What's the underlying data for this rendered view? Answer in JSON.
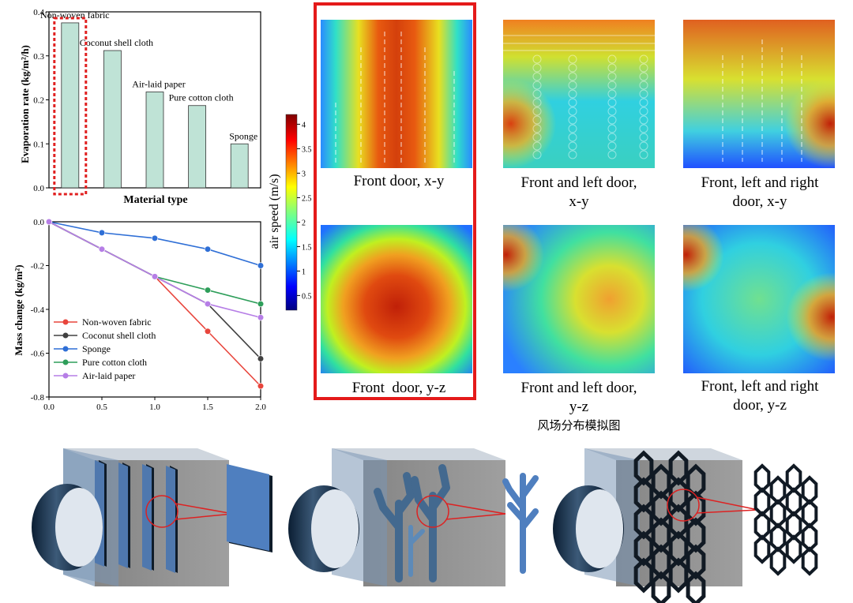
{
  "chart_data": [
    {
      "type": "bar",
      "categories": [
        "Non-woven fabric",
        "Coconut shell cloth",
        "Air-laid paper",
        "Pure cotton cloth",
        "Sponge"
      ],
      "values": [
        0.375,
        0.312,
        0.218,
        0.187,
        0.1
      ],
      "xlabel": "Material type",
      "ylabel": "Evaporation rate (kg/m²/h)",
      "ylim": [
        0,
        0.4
      ],
      "yticks": [
        "0.0",
        "0.1",
        "0.2",
        "0.3",
        "0.4"
      ],
      "highlight": "Non-woven fabric",
      "bar_color": "#bfe3d6",
      "highlight_color": "#e02020"
    },
    {
      "type": "line",
      "x": [
        0,
        0.5,
        1.0,
        1.5,
        2.0
      ],
      "series": [
        {
          "name": "Non-woven fabric",
          "color": "#e8453c",
          "values": [
            0,
            null,
            -0.25,
            -0.5,
            -0.75
          ]
        },
        {
          "name": "Coconut shell cloth",
          "color": "#404040",
          "values": [
            0,
            null,
            -0.25,
            -0.375,
            -0.625
          ]
        },
        {
          "name": "Sponge",
          "color": "#2f6fd6",
          "values": [
            0,
            -0.05,
            -0.075,
            -0.125,
            -0.2
          ]
        },
        {
          "name": "Pure cotton cloth",
          "color": "#2e9e5a",
          "values": [
            0,
            null,
            -0.25,
            -0.312,
            -0.375
          ]
        },
        {
          "name": "Air-laid paper",
          "color": "#b67ee6",
          "values": [
            0,
            -0.125,
            -0.25,
            -0.375,
            -0.437
          ]
        }
      ],
      "ylabel": "Mass change (kg/m²)",
      "xlim": [
        0,
        2.0
      ],
      "ylim": [
        -0.8,
        0
      ],
      "xticks": [
        "0.0",
        "0.5",
        "1.0",
        "1.5",
        "2.0"
      ],
      "yticks": [
        "0.0",
        "-0.2",
        "-0.4",
        "-0.6",
        "-0.8"
      ],
      "legend": "bottom-left"
    },
    {
      "type": "heatmap",
      "colorbar_label": "air speed (m/s)",
      "colorbar_ticks": [
        "4",
        "3.5",
        "3",
        "2.5",
        "2",
        "1.5",
        "1",
        "0.5"
      ],
      "colorbar_range": [
        0.2,
        4.2
      ],
      "panels": [
        {
          "caption": [
            "Front door, x-y"
          ],
          "highlight": true
        },
        {
          "caption": [
            "Front and left door,",
            "x-y"
          ]
        },
        {
          "caption": [
            "Front, left and right",
            "door, x-y"
          ]
        },
        {
          "caption": [
            "Front  door, y-z"
          ],
          "highlight": true
        },
        {
          "caption": [
            "Front and left door,",
            "y-z"
          ]
        },
        {
          "caption": [
            "Front, left and right",
            "door, y-z"
          ]
        }
      ],
      "group_caption": "风场分布模拟图"
    }
  ],
  "illustrations": [
    {
      "name": "plate-structure",
      "insert": "flat-plate"
    },
    {
      "name": "branch-structure",
      "insert": "tree-branch"
    },
    {
      "name": "honeycomb-structure",
      "insert": "honeycomb-grid"
    }
  ]
}
